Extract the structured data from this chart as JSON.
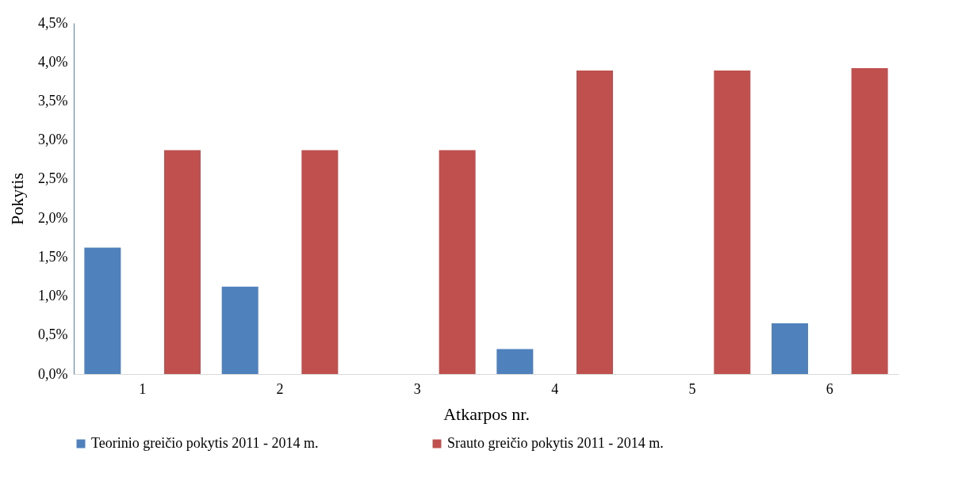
{
  "chart_data": {
    "type": "bar",
    "xlabel": "Atkarpos nr.",
    "ylabel": "Pokytis",
    "categories": [
      "1",
      "2",
      "3",
      "4",
      "5",
      "6"
    ],
    "series": [
      {
        "name": "Teorinio greičio pokytis 2011 - 2014 m.",
        "color": "#4f81bd",
        "values": [
          1.62,
          1.12,
          0,
          0.32,
          0,
          0.65
        ]
      },
      {
        "name": "Srauto greičio pokytis 2011 - 2014 m.",
        "color": "#c0504d",
        "values": [
          2.87,
          2.87,
          2.87,
          3.89,
          3.89,
          3.92
        ]
      }
    ],
    "ylim": [
      0,
      4.5
    ],
    "yticks": [
      {
        "value": 0,
        "label": "0,0%"
      },
      {
        "value": 0.5,
        "label": "0,5%"
      },
      {
        "value": 1,
        "label": "1,0%"
      },
      {
        "value": 1.5,
        "label": "1,5%"
      },
      {
        "value": 2,
        "label": "2,0%"
      },
      {
        "value": 2.5,
        "label": "2,5%"
      },
      {
        "value": 3,
        "label": "3,0%"
      },
      {
        "value": 3.5,
        "label": "3,5%"
      },
      {
        "value": 4,
        "label": "4,0%"
      },
      {
        "value": 4.5,
        "label": "4,5%"
      }
    ],
    "grid": false,
    "legend": "bottom"
  }
}
